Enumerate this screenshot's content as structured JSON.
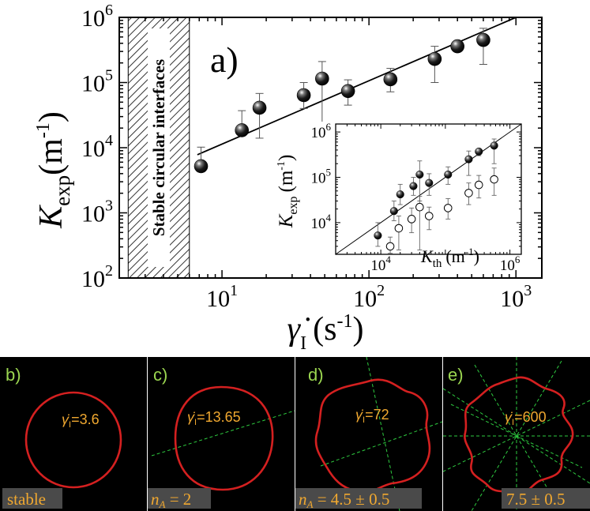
{
  "chart_data": [
    {
      "type": "scatter",
      "panel_label": "a)",
      "xlabel_symbol": "γ̇",
      "xlabel_sub": "I",
      "xlabel_unit": "(s",
      "xlabel_unit_exp": "-1",
      "xlabel_unit_close": ")",
      "ylabel_symbol": "K",
      "ylabel_sub": "exp",
      "ylabel_unit": "(m",
      "ylabel_unit_exp": "-1",
      "ylabel_unit_close": ")",
      "x_scale": "log",
      "y_scale": "log",
      "xlim": [
        2,
        1500
      ],
      "ylim": [
        100,
        1000000
      ],
      "x_ticks": [
        {
          "value": 10,
          "base": "10",
          "exp": "1"
        },
        {
          "value": 100,
          "base": "10",
          "exp": "2"
        },
        {
          "value": 1000,
          "base": "10",
          "exp": "3"
        }
      ],
      "y_ticks": [
        {
          "value": 100,
          "base": "10",
          "exp": "2"
        },
        {
          "value": 1000,
          "base": "10",
          "exp": "3"
        },
        {
          "value": 10000,
          "base": "10",
          "exp": "4"
        },
        {
          "value": 100000,
          "base": "10",
          "exp": "5"
        },
        {
          "value": 1000000,
          "base": "10",
          "exp": "6"
        }
      ],
      "shaded_region": {
        "x_range": [
          2.3,
          6
        ],
        "label": "Stable circular interfaces"
      },
      "fit_line": {
        "points": [
          [
            6.8,
            7800
          ],
          [
            1000,
            1000000
          ]
        ]
      },
      "series": [
        {
          "marker": "filled-sphere",
          "points": [
            {
              "x": 7.2,
              "y": 5200,
              "err_low": 5200,
              "err_high": 10200
            },
            {
              "x": 13.65,
              "y": 18500,
              "err_low": 18500,
              "err_high": 37000
            },
            {
              "x": 18,
              "y": 41000,
              "err_low": 14000,
              "err_high": 68000
            },
            {
              "x": 36,
              "y": 64000,
              "err_low": 40000,
              "err_high": 100000
            },
            {
              "x": 48,
              "y": 115000,
              "err_low": 15000,
              "err_high": 210000
            },
            {
              "x": 72,
              "y": 74000,
              "err_low": 45000,
              "err_high": 110000
            },
            {
              "x": 140,
              "y": 112000,
              "err_low": 72000,
              "err_high": 165000
            },
            {
              "x": 280,
              "y": 230000,
              "err_low": 100000,
              "err_high": 360000
            },
            {
              "x": 400,
              "y": 360000,
              "err_low": 310000,
              "err_high": 410000
            },
            {
              "x": 600,
              "y": 450000,
              "err_low": 190000,
              "err_high": 680000
            }
          ]
        }
      ]
    },
    {
      "type": "scatter",
      "role": "inset",
      "xlabel_symbol": "K",
      "xlabel_sub": "th",
      "xlabel_unit": "(m",
      "xlabel_unit_exp": "-1",
      "xlabel_unit_close": ")",
      "ylabel_symbol": "K",
      "ylabel_sub": "exp",
      "ylabel_unit": "(m",
      "ylabel_unit_exp": "-1",
      "ylabel_unit_close": ")",
      "x_scale": "log",
      "y_scale": "log",
      "xlim": [
        2000,
        1500000
      ],
      "ylim": [
        2000,
        1500000
      ],
      "x_ticks": [
        {
          "value": 10000,
          "base": "10",
          "exp": "4"
        },
        {
          "value": 1000000,
          "base": "10",
          "exp": "6"
        }
      ],
      "y_ticks": [
        {
          "value": 10000,
          "base": "10",
          "exp": "4"
        },
        {
          "value": 100000,
          "base": "10",
          "exp": "5"
        },
        {
          "value": 1000000,
          "base": "10",
          "exp": "6"
        }
      ],
      "reference_line": "y = x",
      "series": [
        {
          "marker": "filled",
          "points": [
            {
              "x": 9000,
              "y": 5200,
              "err_low": 3000,
              "err_high": 10000
            },
            {
              "x": 16000,
              "y": 18000,
              "err_low": 11000,
              "err_high": 30000
            },
            {
              "x": 20000,
              "y": 42000,
              "err_low": 25000,
              "err_high": 70000
            },
            {
              "x": 32000,
              "y": 64000,
              "err_low": 40000,
              "err_high": 100000
            },
            {
              "x": 40000,
              "y": 115000,
              "err_low": 30000,
              "err_high": 230000
            },
            {
              "x": 56000,
              "y": 75000,
              "err_low": 40000,
              "err_high": 120000
            },
            {
              "x": 110000,
              "y": 115000,
              "err_low": 70000,
              "err_high": 170000
            },
            {
              "x": 230000,
              "y": 250000,
              "err_low": 110000,
              "err_high": 380000
            },
            {
              "x": 330000,
              "y": 370000,
              "err_low": 300000,
              "err_high": 420000
            },
            {
              "x": 570000,
              "y": 500000,
              "err_low": 200000,
              "err_high": 700000
            }
          ]
        },
        {
          "marker": "open",
          "points": [
            {
              "x": 14000,
              "y": 3000,
              "err_low": 2100,
              "err_high": 4800
            },
            {
              "x": 19000,
              "y": 7500,
              "err_low": 2500,
              "err_high": 14000
            },
            {
              "x": 30000,
              "y": 12000,
              "err_low": 6000,
              "err_high": 21000
            },
            {
              "x": 40000,
              "y": 22000,
              "err_low": 2500,
              "err_high": 38000
            },
            {
              "x": 56000,
              "y": 14000,
              "err_low": 7000,
              "err_high": 22000
            },
            {
              "x": 110000,
              "y": 21000,
              "err_low": 12000,
              "err_high": 34000
            },
            {
              "x": 230000,
              "y": 45000,
              "err_low": 25000,
              "err_high": 75000
            },
            {
              "x": 330000,
              "y": 68000,
              "err_low": 35000,
              "err_high": 110000
            },
            {
              "x": 570000,
              "y": 90000,
              "err_low": 40000,
              "err_high": 160000
            }
          ]
        }
      ]
    }
  ],
  "micrographs": [
    {
      "letter": "b)",
      "shear_rate": "=3.6",
      "caption": "stable"
    },
    {
      "letter": "c)",
      "shear_rate": "=13.65",
      "caption": "n",
      "caption_sub": "A",
      "caption_rest": " = 2"
    },
    {
      "letter": "d)",
      "shear_rate": "=72",
      "caption": "n",
      "caption_sub": "A",
      "caption_rest": " = 4.5 ± 0.5"
    },
    {
      "letter": "e)",
      "shear_rate": "=600",
      "caption": "7.5 ± 0.5"
    }
  ],
  "micrograph_symbol": "γ̇",
  "micrograph_symbol_sub": "I",
  "colors": {
    "contour": "#d42020",
    "axis_lines": "#2ecc40",
    "labels": "#f0a830",
    "letters": "#9bd650"
  }
}
